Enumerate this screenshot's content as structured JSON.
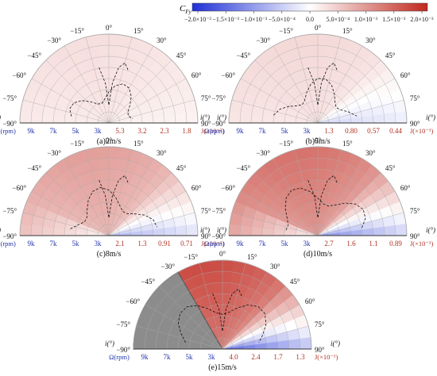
{
  "colorbar": {
    "label": "C",
    "label_sub": "Fy",
    "ticks": [
      "−2.0×10⁻³",
      "−1.5×10⁻³",
      "−1.0×10⁻³",
      "−5.0×10⁻⁴",
      "0.0",
      "5.0×10⁻⁴",
      "1.0×10⁻³",
      "1.5×10⁻³",
      "2.0×10⁻³"
    ],
    "range": [
      -0.002,
      0.002
    ],
    "colors": {
      "negative": "#1f2fd6",
      "zero": "#ffffff",
      "positive": "#c0281e"
    }
  },
  "angle_labels": [
    "−90°",
    "−75°",
    "−60°",
    "−45°",
    "−30°",
    "−15°",
    "0°",
    "15°",
    "30°",
    "45°",
    "60°",
    "75°",
    "90°"
  ],
  "angle_symbol": "i(°)",
  "omega_label": "Ω(rpm)",
  "omega_ticks": [
    "9k",
    "7k",
    "5k",
    "3k"
  ],
  "colors": {
    "omega_text": "#2233aa",
    "j_text": "#b03020",
    "shadow": "#8c8c8c",
    "grid": "#aaaaaa",
    "contour": "#111111"
  },
  "chart_data": [
    {
      "type": "heatmap",
      "polar": true,
      "caption": "(a)2m/s",
      "j_ticks": [
        "5.3",
        "3.2",
        "2.3",
        "1.8"
      ],
      "j_label": "J(×10⁻²)",
      "mean_cfy": 0.00025,
      "shadow": false
    },
    {
      "type": "heatmap",
      "polar": true,
      "caption": "(b)5m/s",
      "j_ticks": [
        "1.3",
        "0.80",
        "0.57",
        "0.44"
      ],
      "j_label": "J(×10⁻¹)",
      "mean_cfy": 0.0003,
      "shadow": false
    },
    {
      "type": "heatmap",
      "polar": true,
      "caption": "(c)8m/s",
      "j_ticks": [
        "2.1",
        "1.3",
        "0.91",
        "0.71"
      ],
      "j_label": "J(×10⁻¹)",
      "mean_cfy": 0.00075,
      "shadow": false
    },
    {
      "type": "heatmap",
      "polar": true,
      "caption": "(d)10m/s",
      "j_ticks": [
        "2.7",
        "1.6",
        "1.1",
        "0.89"
      ],
      "j_label": "J(×10⁻¹)",
      "mean_cfy": 0.0011,
      "shadow": false
    },
    {
      "type": "heatmap",
      "polar": true,
      "caption": "(e)15m/s",
      "j_ticks": [
        "4.0",
        "2.4",
        "1.7",
        "1.3"
      ],
      "j_label": "J(×10⁻¹)",
      "mean_cfy": 0.0014,
      "shadow": true,
      "shadow_angle_range": [
        -90,
        -30
      ]
    }
  ]
}
